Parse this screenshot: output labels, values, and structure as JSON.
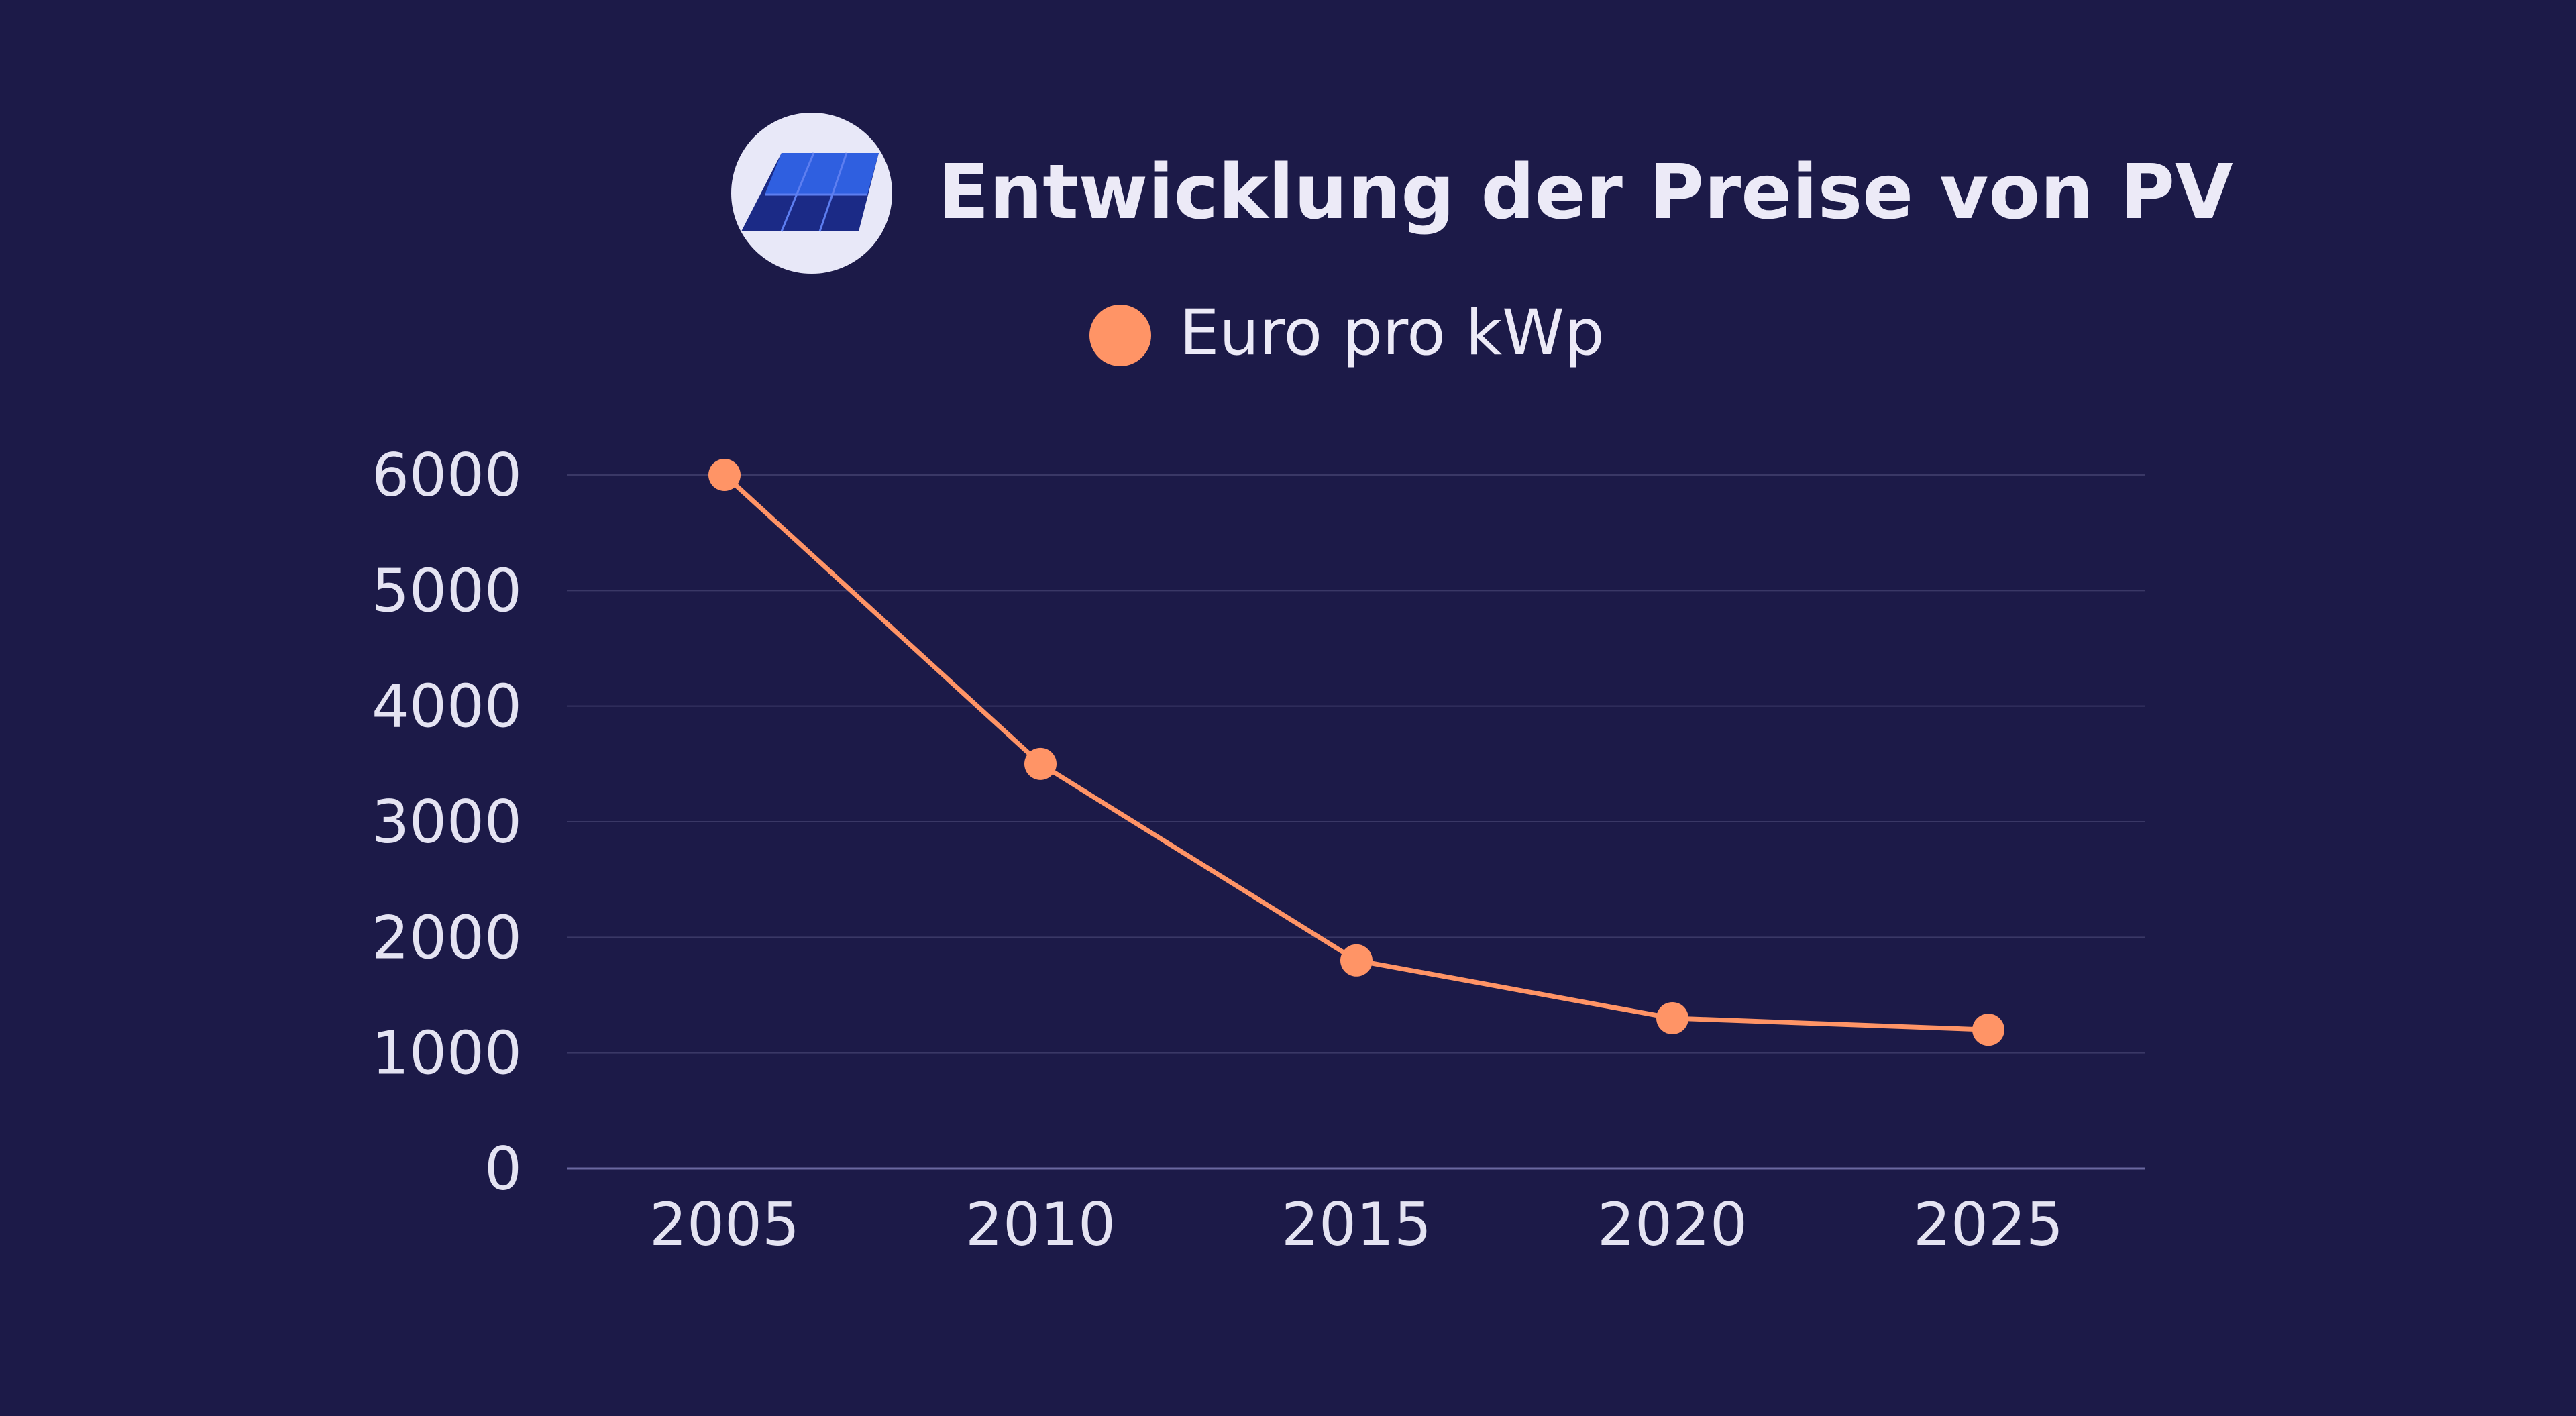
{
  "colors": {
    "background": "#1c1a48",
    "text": "#e4e3f2",
    "grid": "#3a3866",
    "series": "#ff9466",
    "icon_bg": "#e8e8f8",
    "panel_dark": "#1b2a86",
    "panel_light": "#2f5fe0"
  },
  "header": {
    "title": "Entwicklung der Preise von PV",
    "icon": "solar-panel-icon"
  },
  "legend": {
    "label": "Euro pro kWp",
    "marker_icon": "circle-marker-icon"
  },
  "chart_data": {
    "type": "line",
    "title": "Entwicklung der Preise von PV",
    "xlabel": "",
    "ylabel": "",
    "categories": [
      "2005",
      "2010",
      "2015",
      "2020",
      "2025"
    ],
    "series": [
      {
        "name": "Euro pro kWp",
        "values": [
          6000,
          3500,
          1800,
          1300,
          1200
        ]
      }
    ],
    "yticks": [
      0,
      1000,
      2000,
      3000,
      4000,
      5000,
      6000
    ],
    "ylim": [
      0,
      6000
    ],
    "grid": true,
    "legend_position": "top-center"
  }
}
